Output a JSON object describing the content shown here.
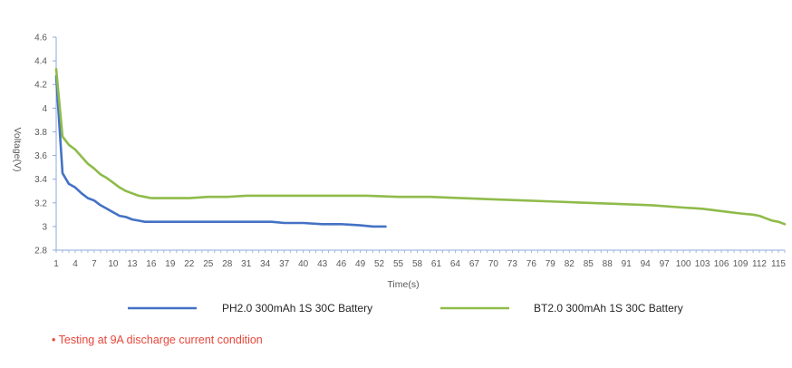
{
  "chart_data": {
    "type": "line",
    "xlabel": "Time(s)",
    "ylabel": "Voltage(V)",
    "xlim": [
      1,
      116
    ],
    "ylim": [
      2.8,
      4.6
    ],
    "yticks": [
      "2.8",
      "3",
      "3.2",
      "3.4",
      "3.6",
      "3.8",
      "4",
      "4.2",
      "4.4",
      "4.6"
    ],
    "xticks": [
      "1",
      "4",
      "7",
      "10",
      "13",
      "16",
      "19",
      "22",
      "25",
      "28",
      "31",
      "34",
      "37",
      "40",
      "43",
      "46",
      "49",
      "52",
      "55",
      "58",
      "61",
      "64",
      "67",
      "70",
      "73",
      "76",
      "79",
      "82",
      "85",
      "88",
      "91",
      "94",
      "97",
      "100",
      "103",
      "106",
      "109",
      "112",
      "115"
    ],
    "grid": false,
    "legend_position": "bottom",
    "series": [
      {
        "name": "PH2.0 300mAh 1S 30C Battery",
        "color": "#4472c4",
        "x": [
          1,
          2,
          3,
          4,
          5,
          6,
          7,
          8,
          9,
          10,
          11,
          12,
          13,
          14,
          15,
          16,
          18,
          20,
          25,
          30,
          35,
          37,
          40,
          43,
          46,
          49,
          51,
          53
        ],
        "y": [
          4.27,
          3.45,
          3.36,
          3.33,
          3.28,
          3.24,
          3.22,
          3.18,
          3.15,
          3.12,
          3.09,
          3.08,
          3.06,
          3.05,
          3.04,
          3.04,
          3.04,
          3.04,
          3.04,
          3.04,
          3.04,
          3.03,
          3.03,
          3.02,
          3.02,
          3.01,
          3.0,
          3.0
        ]
      },
      {
        "name": "BT2.0 300mAh 1S 30C Battery",
        "color": "#8fbb4a",
        "x": [
          1,
          2,
          3,
          4,
          5,
          6,
          7,
          8,
          9,
          10,
          11,
          12,
          13,
          14,
          15,
          16,
          18,
          20,
          22,
          25,
          28,
          31,
          35,
          40,
          45,
          50,
          55,
          60,
          65,
          70,
          75,
          80,
          85,
          90,
          95,
          100,
          103,
          106,
          109,
          111,
          112,
          113,
          114,
          115,
          116
        ],
        "y": [
          4.33,
          3.76,
          3.69,
          3.65,
          3.59,
          3.53,
          3.49,
          3.44,
          3.41,
          3.37,
          3.33,
          3.3,
          3.28,
          3.26,
          3.25,
          3.24,
          3.24,
          3.24,
          3.24,
          3.25,
          3.25,
          3.26,
          3.26,
          3.26,
          3.26,
          3.26,
          3.25,
          3.25,
          3.24,
          3.23,
          3.22,
          3.21,
          3.2,
          3.19,
          3.18,
          3.16,
          3.15,
          3.13,
          3.11,
          3.1,
          3.09,
          3.07,
          3.05,
          3.04,
          3.02
        ]
      }
    ]
  },
  "footnote": "• Testing at 9A discharge current condition"
}
